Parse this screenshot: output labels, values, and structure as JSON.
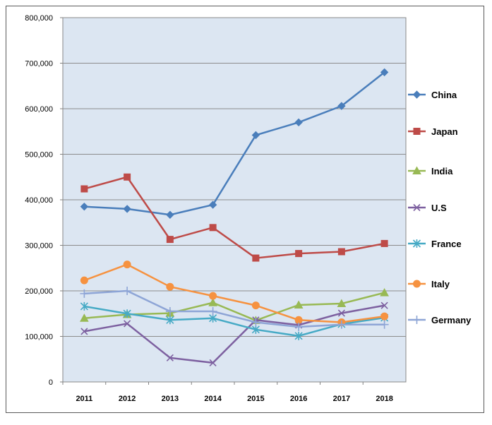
{
  "chart_data": {
    "type": "line",
    "title": "",
    "xlabel": "",
    "ylabel": "",
    "categories": [
      "2011",
      "2012",
      "2013",
      "2014",
      "2015",
      "2016",
      "2017",
      "2018"
    ],
    "ylim": [
      0,
      800000
    ],
    "yticks": [
      0,
      100000,
      200000,
      300000,
      400000,
      500000,
      600000,
      700000,
      800000
    ],
    "ytick_labels": [
      "0",
      "100,000",
      "200,000",
      "300,000",
      "400,000",
      "500,000",
      "600,000",
      "700,000",
      "800,000"
    ],
    "grid": "horizontal",
    "legend_position": "right",
    "series": [
      {
        "name": "China",
        "color": "#4A7EBB",
        "marker": "diamond",
        "values": [
          385000,
          380000,
          367000,
          389000,
          542000,
          570000,
          606000,
          680000
        ]
      },
      {
        "name": "Japan",
        "color": "#BE4B48",
        "marker": "square",
        "values": [
          424000,
          450000,
          313000,
          339000,
          272000,
          282000,
          286000,
          304000
        ]
      },
      {
        "name": "India",
        "color": "#98B954",
        "marker": "triangle",
        "values": [
          140000,
          148000,
          151000,
          174000,
          135000,
          169000,
          172000,
          196000
        ]
      },
      {
        "name": "U.S",
        "color": "#7D60A0",
        "marker": "x",
        "values": [
          111000,
          128000,
          53000,
          42000,
          136000,
          125000,
          151000,
          168000
        ]
      },
      {
        "name": "France",
        "color": "#46AAC5",
        "marker": "star",
        "values": [
          166000,
          150000,
          136000,
          140000,
          115000,
          101000,
          127000,
          141000
        ]
      },
      {
        "name": "Italy",
        "color": "#F69240",
        "marker": "circle",
        "values": [
          223000,
          258000,
          209000,
          189000,
          168000,
          136000,
          131000,
          144000
        ]
      },
      {
        "name": "Germany",
        "color": "#8EA5D6",
        "marker": "plus",
        "values": [
          194000,
          200000,
          155000,
          155000,
          131000,
          121000,
          126000,
          126000
        ]
      }
    ]
  }
}
